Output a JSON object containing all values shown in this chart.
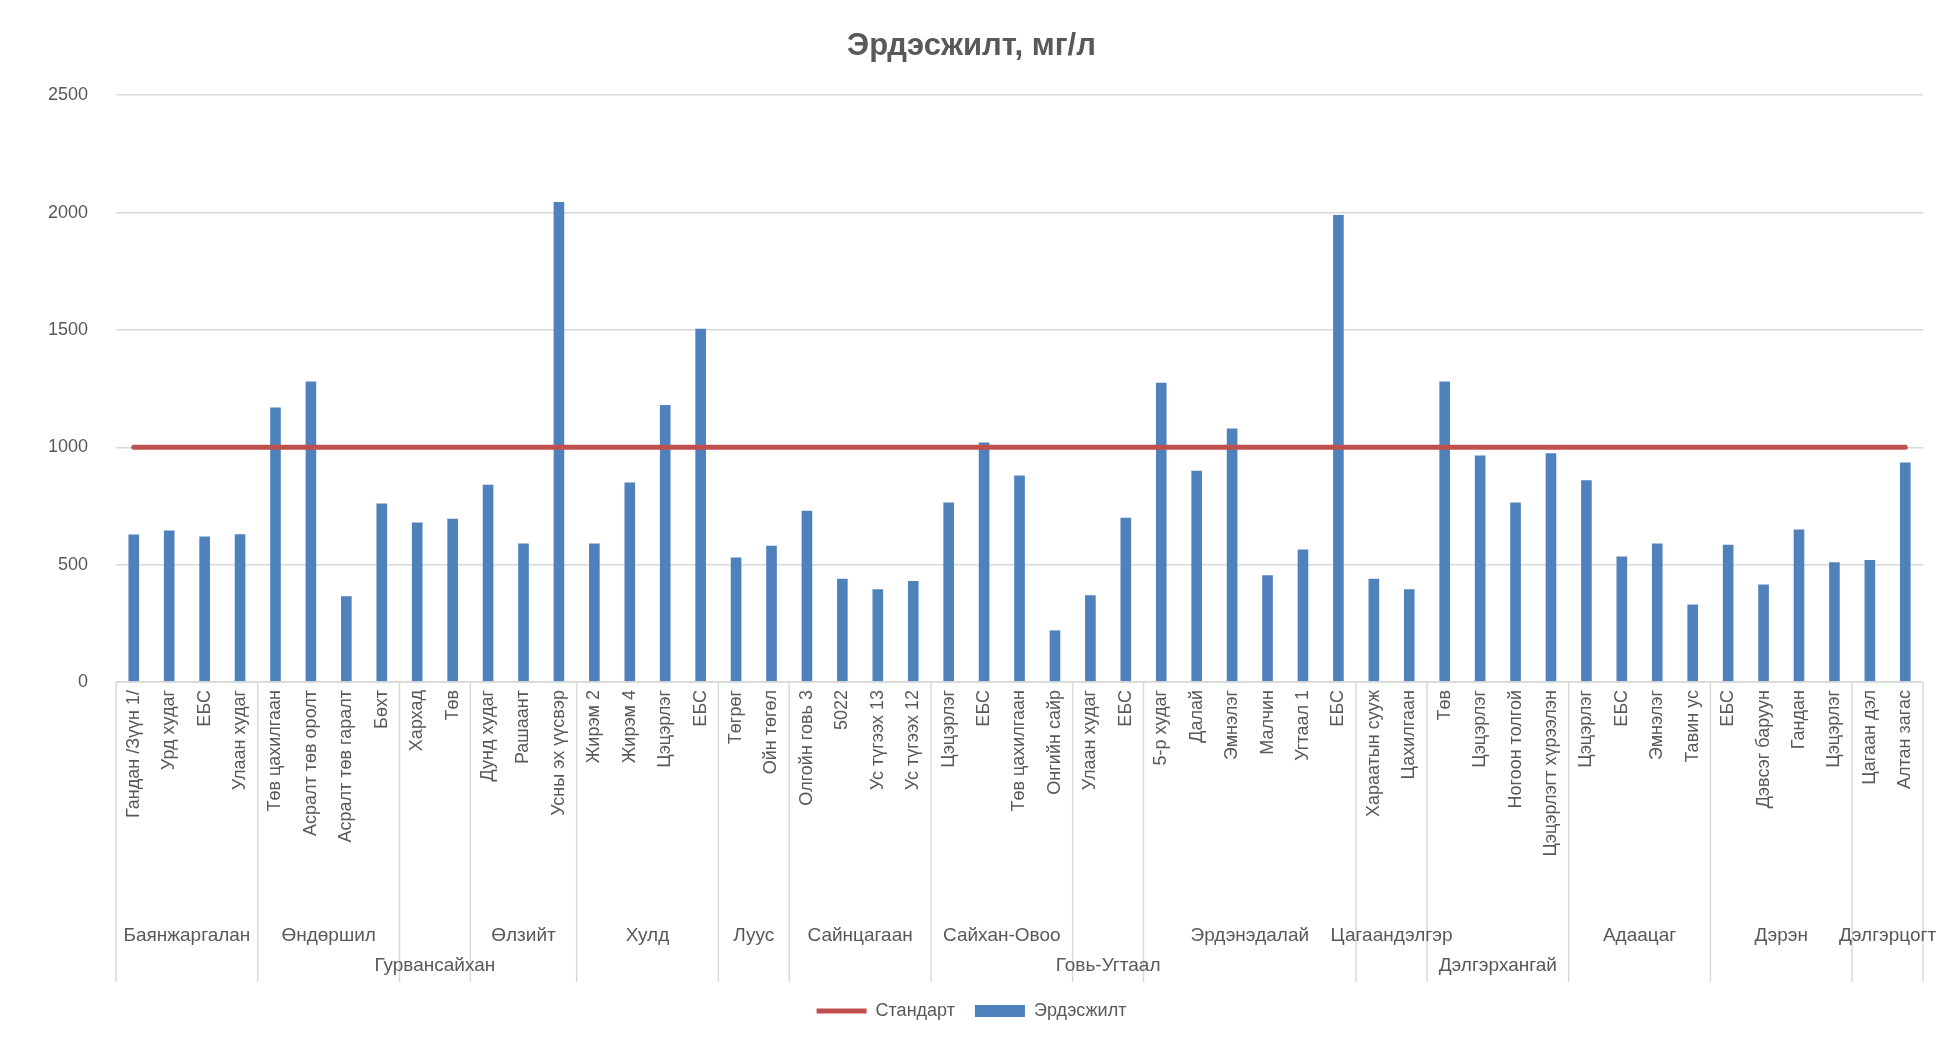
{
  "chart_data": {
    "type": "bar",
    "title": "Эрдэсжилт, мг/л",
    "categories": [
      "Гандан /Зүүн 1/",
      "Урд худаг",
      "ЕБС",
      "Улаан худаг",
      "Төв цахилгаан",
      "Асралт төв оролт",
      "Асралт төв гаралт",
      "Бөхт",
      "Хархад",
      "Төв",
      "Дунд худаг",
      "Рашаант",
      "Усны эх үүсвэр",
      "Жирэм 2",
      "Жирэм 4",
      "Цэцэрлэг",
      "ЕБС",
      "Төгрөг",
      "Ойн төгөл",
      "Олгойн говь 3",
      "5022",
      "Ус түгээх 13",
      "Ус түгээх 12",
      "Цэцэрлэг",
      "ЕБС",
      "Төв цахилгаан",
      "Онгийн сайр",
      "Улаан худаг",
      "ЕБС",
      "5-р худаг",
      "Далай",
      "Эмнэлэг",
      "Малчин",
      "Угтаал 1",
      "ЕБС",
      "Хараатын сууж",
      "Цахилгаан",
      "Төв",
      "Цэцэрлэг",
      "Ногоон толгой",
      "Цэцэрлэгт хүрээлэн",
      "Цэцэрлэг",
      "ЕБС",
      "Эмнэлэг",
      "Тавин ус",
      "ЕБС",
      "Дэвсэг баруун",
      "Гандан",
      "Цэцэрлэг",
      "Цагаан дэл",
      "Алтан загас"
    ],
    "series": [
      {
        "name": "Эрдэсжилт",
        "color": "#4f81bd",
        "values": [
          628,
          645,
          620,
          630,
          1170,
          1280,
          365,
          760,
          680,
          695,
          840,
          590,
          2045,
          590,
          850,
          1180,
          1505,
          530,
          580,
          730,
          440,
          395,
          430,
          765,
          1020,
          880,
          220,
          370,
          700,
          1275,
          900,
          1080,
          455,
          565,
          1990,
          440,
          395,
          1280,
          965,
          765,
          975,
          860,
          535,
          590,
          330,
          585,
          415,
          650,
          510,
          520,
          935
        ]
      },
      {
        "name": "Стандарт",
        "type": "line",
        "color": "#c0504d",
        "values": [
          1000,
          1000,
          1000,
          1000,
          1000,
          1000,
          1000,
          1000,
          1000,
          1000,
          1000,
          1000,
          1000,
          1000,
          1000,
          1000,
          1000,
          1000,
          1000,
          1000,
          1000,
          1000,
          1000,
          1000,
          1000,
          1000,
          1000,
          1000,
          1000,
          1000,
          1000,
          1000,
          1000,
          1000,
          1000,
          1000,
          1000,
          1000,
          1000,
          1000,
          1000,
          1000,
          1000,
          1000,
          1000,
          1000,
          1000,
          1000,
          1000,
          1000,
          1000
        ]
      }
    ],
    "ylim": [
      0,
      2500
    ],
    "yticks": [
      0,
      500,
      1000,
      1500,
      2000,
      2500
    ],
    "grid": "y",
    "legend": "bottom",
    "marker": "none",
    "line_style": "solid",
    "annotations": [
      "Баянжаргалан",
      "Өндөршил",
      "Гурвансайхан",
      "Өлзийт",
      "Хулд",
      "Луус",
      "Сайнцагаан",
      "Сайхан-Овоо",
      "Говь-Угтаал",
      "Эрдэнэдалай",
      "Цагаандэлгэр",
      "Дэлгэрхангай",
      "Адаацаг",
      "Дэрэн",
      "Дэлгэрцогт"
    ]
  }
}
